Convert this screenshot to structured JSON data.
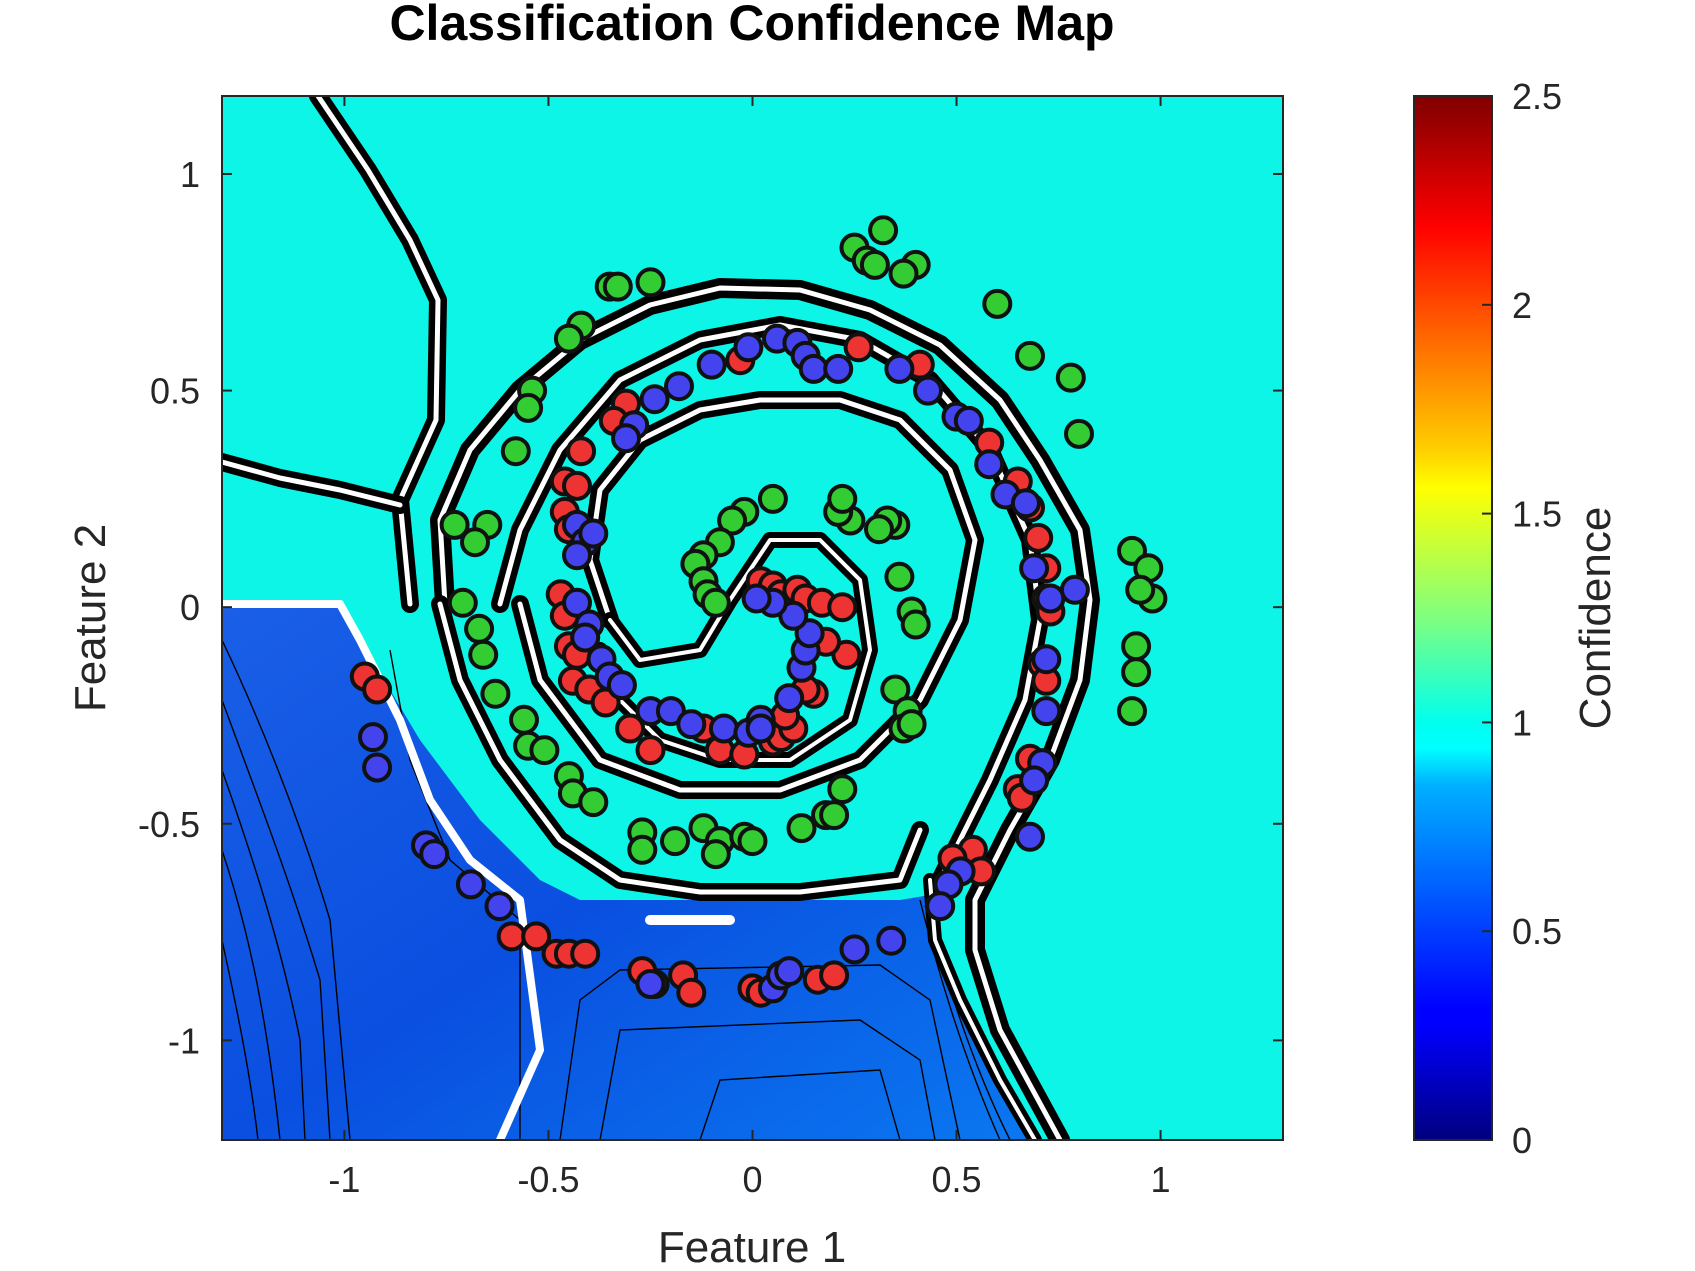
{
  "chart_data": {
    "type": "contour",
    "title": "Classification Confidence Map",
    "xlabel": "Feature 1",
    "ylabel": "Feature 2",
    "xlim": [
      -1.3,
      1.3
    ],
    "ylim": [
      -1.23,
      1.18
    ],
    "xticks": [
      -1,
      -0.5,
      0,
      0.5,
      1
    ],
    "xtick_labels": [
      "-1",
      "-0.5",
      "0",
      "0.5",
      "1"
    ],
    "yticks": [
      1,
      0.5,
      0,
      -0.5,
      -1
    ],
    "ytick_labels": [
      "1",
      "0.5",
      "0",
      "-0.5",
      "-1"
    ],
    "grid": false,
    "colormap": "jet",
    "colorbar": {
      "label": "Confidence",
      "range": [
        0,
        2.5
      ],
      "ticks": [
        2.5,
        2,
        1.5,
        1,
        0.5,
        0
      ],
      "tick_labels": [
        "2.5",
        "2",
        "1.5",
        "1",
        "0.5",
        "0"
      ]
    },
    "background_confidence": 1,
    "low_confidence_region_value": 0.55,
    "series": [
      {
        "color": "#33cc33",
        "points": [
          [
            0.32,
            0.87
          ],
          [
            0.25,
            0.83
          ],
          [
            0.28,
            0.8
          ],
          [
            0.3,
            0.79
          ],
          [
            0.4,
            0.79
          ],
          [
            0.37,
            0.77
          ],
          [
            -0.25,
            0.75
          ],
          [
            -0.35,
            0.74
          ],
          [
            -0.33,
            0.74
          ],
          [
            -0.42,
            0.65
          ],
          [
            -0.45,
            0.62
          ],
          [
            0.6,
            0.7
          ],
          [
            0.68,
            0.58
          ],
          [
            0.78,
            0.53
          ],
          [
            0.8,
            0.4
          ],
          [
            -0.54,
            0.5
          ],
          [
            -0.55,
            0.46
          ],
          [
            -0.58,
            0.36
          ],
          [
            -0.73,
            0.19
          ],
          [
            -0.65,
            0.19
          ],
          [
            -0.68,
            0.15
          ],
          [
            -0.71,
            0.01
          ],
          [
            -0.67,
            -0.05
          ],
          [
            -0.66,
            -0.11
          ],
          [
            -0.63,
            -0.2
          ],
          [
            -0.56,
            -0.26
          ],
          [
            -0.55,
            -0.32
          ],
          [
            -0.51,
            -0.33
          ],
          [
            -0.45,
            -0.39
          ],
          [
            -0.44,
            -0.43
          ],
          [
            -0.39,
            -0.45
          ],
          [
            -0.27,
            -0.52
          ],
          [
            -0.27,
            -0.56
          ],
          [
            -0.19,
            -0.54
          ],
          [
            -0.12,
            -0.51
          ],
          [
            -0.08,
            -0.54
          ],
          [
            -0.09,
            -0.57
          ],
          [
            -0.02,
            -0.53
          ],
          [
            0.0,
            -0.54
          ],
          [
            0.12,
            -0.51
          ],
          [
            0.18,
            -0.48
          ],
          [
            0.2,
            -0.48
          ],
          [
            0.22,
            -0.42
          ],
          [
            0.35,
            -0.19
          ],
          [
            0.38,
            -0.24
          ],
          [
            0.37,
            -0.28
          ],
          [
            0.39,
            -0.27
          ],
          [
            0.39,
            -0.01
          ],
          [
            0.4,
            -0.04
          ],
          [
            0.36,
            0.07
          ],
          [
            0.35,
            0.19
          ],
          [
            0.33,
            0.2
          ],
          [
            0.31,
            0.18
          ],
          [
            0.24,
            0.2
          ],
          [
            0.21,
            0.22
          ],
          [
            0.22,
            0.25
          ],
          [
            0.05,
            0.25
          ],
          [
            -0.02,
            0.22
          ],
          [
            -0.05,
            0.2
          ],
          [
            -0.08,
            0.15
          ],
          [
            -0.12,
            0.12
          ],
          [
            -0.14,
            0.1
          ],
          [
            -0.12,
            0.06
          ],
          [
            -0.11,
            0.03
          ],
          [
            -0.09,
            0.01
          ],
          [
            0.93,
            0.13
          ],
          [
            0.97,
            0.09
          ],
          [
            0.98,
            0.02
          ],
          [
            0.95,
            0.04
          ],
          [
            0.94,
            -0.09
          ],
          [
            0.94,
            -0.15
          ],
          [
            0.93,
            -0.24
          ]
        ]
      },
      {
        "color": "#ee3333",
        "points": [
          [
            0.26,
            0.6
          ],
          [
            0.41,
            0.56
          ],
          [
            -0.03,
            0.57
          ],
          [
            -0.31,
            0.47
          ],
          [
            -0.34,
            0.43
          ],
          [
            -0.42,
            0.36
          ],
          [
            -0.46,
            0.29
          ],
          [
            -0.43,
            0.28
          ],
          [
            -0.46,
            0.22
          ],
          [
            -0.45,
            0.18
          ],
          [
            -0.47,
            0.03
          ],
          [
            -0.46,
            -0.02
          ],
          [
            -0.45,
            -0.09
          ],
          [
            -0.43,
            -0.11
          ],
          [
            -0.44,
            -0.17
          ],
          [
            -0.4,
            -0.19
          ],
          [
            -0.36,
            -0.22
          ],
          [
            -0.3,
            -0.28
          ],
          [
            -0.25,
            -0.33
          ],
          [
            -0.12,
            -0.28
          ],
          [
            -0.08,
            -0.33
          ],
          [
            -0.02,
            -0.34
          ],
          [
            0.05,
            -0.31
          ],
          [
            0.07,
            -0.3
          ],
          [
            0.1,
            -0.28
          ],
          [
            0.02,
            0.06
          ],
          [
            0.05,
            0.05
          ],
          [
            0.07,
            0.03
          ],
          [
            0.11,
            0.04
          ],
          [
            0.13,
            0.02
          ],
          [
            0.17,
            0.01
          ],
          [
            0.22,
            0.0
          ],
          [
            0.23,
            -0.11
          ],
          [
            0.18,
            -0.08
          ],
          [
            0.15,
            -0.2
          ],
          [
            0.13,
            -0.19
          ],
          [
            0.08,
            -0.25
          ],
          [
            0.58,
            0.38
          ],
          [
            0.65,
            0.29
          ],
          [
            0.68,
            0.23
          ],
          [
            0.7,
            0.16
          ],
          [
            0.72,
            0.09
          ],
          [
            0.72,
            0.02
          ],
          [
            0.73,
            -0.01
          ],
          [
            0.71,
            -0.13
          ],
          [
            0.72,
            -0.17
          ],
          [
            0.68,
            -0.35
          ],
          [
            0.65,
            -0.42
          ],
          [
            0.66,
            -0.44
          ],
          [
            0.54,
            -0.56
          ],
          [
            0.49,
            -0.58
          ],
          [
            0.56,
            -0.61
          ],
          [
            0.48,
            -0.64
          ],
          [
            -0.95,
            -0.16
          ],
          [
            -0.92,
            -0.19
          ],
          [
            -0.59,
            -0.76
          ],
          [
            -0.53,
            -0.76
          ],
          [
            -0.48,
            -0.8
          ],
          [
            -0.45,
            -0.8
          ],
          [
            -0.41,
            -0.8
          ],
          [
            -0.27,
            -0.84
          ],
          [
            -0.24,
            -0.87
          ],
          [
            -0.17,
            -0.85
          ],
          [
            -0.15,
            -0.89
          ],
          [
            0.0,
            -0.88
          ],
          [
            0.02,
            -0.89
          ],
          [
            0.16,
            -0.86
          ],
          [
            0.2,
            -0.85
          ]
        ]
      },
      {
        "color": "#4444ee",
        "points": [
          [
            0.06,
            0.62
          ],
          [
            0.11,
            0.61
          ],
          [
            0.13,
            0.58
          ],
          [
            0.15,
            0.55
          ],
          [
            0.21,
            0.55
          ],
          [
            0.36,
            0.55
          ],
          [
            0.43,
            0.5
          ],
          [
            -0.01,
            0.6
          ],
          [
            -0.1,
            0.56
          ],
          [
            -0.18,
            0.51
          ],
          [
            -0.24,
            0.48
          ],
          [
            -0.29,
            0.42
          ],
          [
            -0.31,
            0.39
          ],
          [
            0.5,
            0.44
          ],
          [
            0.53,
            0.43
          ],
          [
            0.58,
            0.33
          ],
          [
            0.62,
            0.26
          ],
          [
            0.67,
            0.24
          ],
          [
            0.69,
            0.09
          ],
          [
            0.73,
            0.02
          ],
          [
            0.79,
            0.04
          ],
          [
            0.72,
            -0.12
          ],
          [
            0.72,
            -0.24
          ],
          [
            0.71,
            -0.36
          ],
          [
            0.69,
            -0.4
          ],
          [
            0.68,
            -0.53
          ],
          [
            0.51,
            -0.61
          ],
          [
            0.48,
            -0.64
          ],
          [
            0.46,
            -0.69
          ],
          [
            -0.43,
            0.19
          ],
          [
            -0.41,
            0.15
          ],
          [
            -0.39,
            0.17
          ],
          [
            -0.43,
            0.12
          ],
          [
            -0.43,
            0.01
          ],
          [
            -0.4,
            -0.04
          ],
          [
            -0.41,
            -0.07
          ],
          [
            -0.37,
            -0.12
          ],
          [
            -0.35,
            -0.16
          ],
          [
            -0.32,
            -0.18
          ],
          [
            -0.25,
            -0.24
          ],
          [
            -0.2,
            -0.24
          ],
          [
            -0.15,
            -0.27
          ],
          [
            -0.07,
            -0.28
          ],
          [
            -0.01,
            -0.29
          ],
          [
            0.02,
            -0.26
          ],
          [
            0.02,
            -0.28
          ],
          [
            0.09,
            -0.21
          ],
          [
            0.12,
            -0.14
          ],
          [
            0.13,
            -0.1
          ],
          [
            0.14,
            -0.06
          ],
          [
            0.1,
            -0.02
          ],
          [
            0.05,
            0.01
          ],
          [
            0.01,
            0.02
          ],
          [
            -0.93,
            -0.3
          ],
          [
            -0.92,
            -0.37
          ],
          [
            -0.8,
            -0.55
          ],
          [
            -0.78,
            -0.57
          ],
          [
            -0.69,
            -0.64
          ],
          [
            -0.62,
            -0.69
          ],
          [
            -0.25,
            -0.87
          ],
          [
            0.05,
            -0.88
          ],
          [
            0.07,
            -0.85
          ],
          [
            0.09,
            -0.84
          ],
          [
            0.25,
            -0.79
          ],
          [
            0.34,
            -0.77
          ]
        ]
      }
    ]
  }
}
